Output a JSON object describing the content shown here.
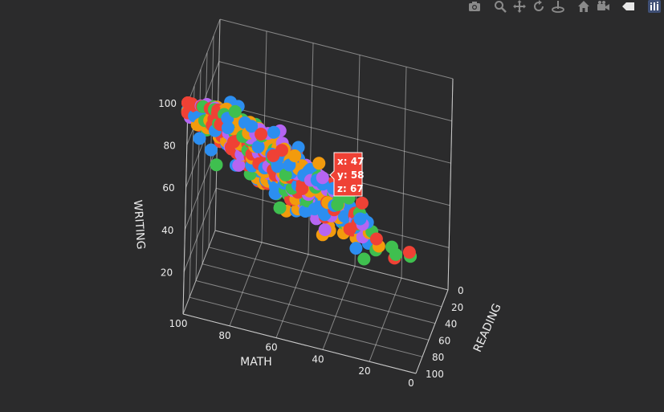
{
  "modebar": {
    "buttons": [
      {
        "name": "camera-icon"
      },
      {
        "name": "zoom-icon"
      },
      {
        "name": "pan-icon"
      },
      {
        "name": "orbit-rotation-icon"
      },
      {
        "name": "turntable-rotation-icon"
      },
      {
        "name": "home-icon"
      },
      {
        "name": "camera-view-icon"
      },
      {
        "name": "hover-toggle-icon"
      },
      {
        "name": "plotly-logo-icon"
      }
    ]
  },
  "colors": {
    "background": "#2b2b2c",
    "grid": "#cfcfcf",
    "text": "#ececec",
    "series": [
      "#ef4135",
      "#2c8ef0",
      "#3fbf4f",
      "#f29b0d",
      "#b565f2"
    ]
  },
  "chart_data": {
    "type": "scatter3d",
    "axes": {
      "x": {
        "title": "MATH",
        "range": [
          0,
          100
        ],
        "ticks": [
          0,
          20,
          40,
          60,
          80,
          100
        ]
      },
      "y": {
        "title": "READING",
        "range": [
          0,
          100
        ],
        "ticks": [
          0,
          20,
          40,
          60,
          80,
          100
        ]
      },
      "z": {
        "title": "WRITING",
        "range": [
          0,
          100
        ],
        "ticks": [
          20,
          40,
          60,
          80,
          100
        ]
      }
    },
    "grid": true,
    "point_count": 1000,
    "relation": "reading ≈ math + 3, writing ≈ reading − 1 (strongly correlated)",
    "hover": {
      "x": "47",
      "y": "58",
      "z": "67",
      "x_label": "x: ",
      "y_label": "y: ",
      "z_label": "z: "
    }
  }
}
